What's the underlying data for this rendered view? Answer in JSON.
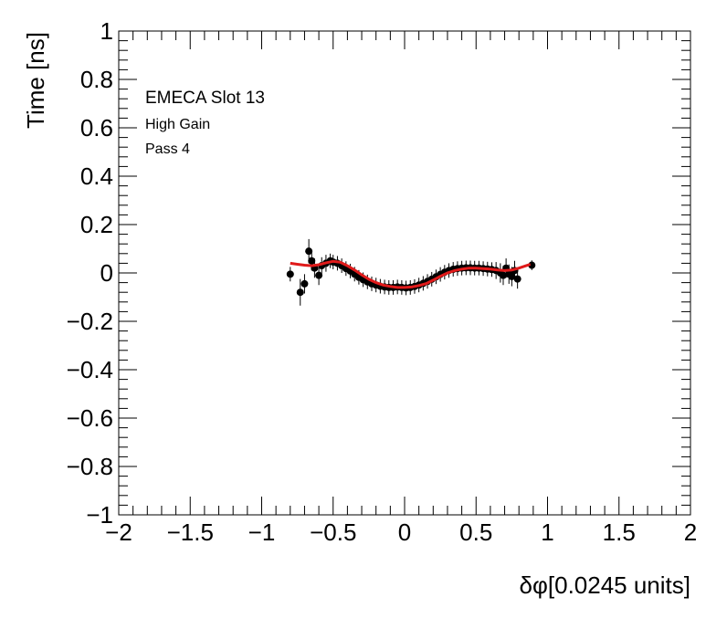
{
  "chart_data": {
    "type": "scatter",
    "title": "",
    "xlabel": "δφ[0.0245 units]",
    "ylabel": "Time [ns]",
    "xlim": [
      -2,
      2
    ],
    "ylim": [
      -1,
      1
    ],
    "x_ticks": [
      -2,
      -1.5,
      -1,
      -0.5,
      0,
      0.5,
      1,
      1.5,
      2
    ],
    "x_tick_labels": [
      "−2",
      "−1.5",
      "−1",
      "−0.5",
      "0",
      "0.5",
      "1",
      "1.5",
      "2"
    ],
    "y_ticks": [
      -1,
      -0.8,
      -0.6,
      -0.4,
      -0.2,
      0,
      0.2,
      0.4,
      0.6,
      0.8,
      1
    ],
    "y_tick_labels": [
      "−1",
      "−0.8",
      "−0.6",
      "−0.4",
      "−0.2",
      "0",
      "0.2",
      "0.4",
      "0.6",
      "0.8",
      "1"
    ],
    "grid": false,
    "annotations": [
      "EMECA Slot 13",
      "High Gain",
      "Pass 4"
    ],
    "series": [
      {
        "kind": "points-with-error-bars",
        "color": "#000000",
        "x": [
          -0.8,
          -0.73,
          -0.7,
          -0.67,
          -0.65,
          -0.63,
          -0.6,
          -0.58,
          -0.55,
          -0.52,
          -0.5,
          -0.47,
          -0.44,
          -0.41,
          -0.38,
          -0.35,
          -0.32,
          -0.29,
          -0.26,
          -0.23,
          -0.2,
          -0.17,
          -0.14,
          -0.11,
          -0.08,
          -0.05,
          -0.02,
          0.01,
          0.04,
          0.07,
          0.1,
          0.13,
          0.16,
          0.19,
          0.22,
          0.25,
          0.28,
          0.31,
          0.34,
          0.37,
          0.4,
          0.43,
          0.46,
          0.49,
          0.52,
          0.55,
          0.58,
          0.61,
          0.64,
          0.67,
          0.69,
          0.71,
          0.73,
          0.75,
          0.77,
          0.79,
          0.89
        ],
        "y": [
          -0.005,
          -0.08,
          -0.045,
          0.09,
          0.05,
          0.02,
          -0.01,
          0.03,
          0.04,
          0.05,
          0.045,
          0.04,
          0.03,
          0.018,
          0.008,
          -0.005,
          -0.018,
          -0.028,
          -0.037,
          -0.045,
          -0.05,
          -0.055,
          -0.058,
          -0.06,
          -0.06,
          -0.058,
          -0.06,
          -0.062,
          -0.06,
          -0.056,
          -0.05,
          -0.043,
          -0.035,
          -0.026,
          -0.016,
          -0.006,
          0.003,
          0.01,
          0.015,
          0.018,
          0.02,
          0.021,
          0.021,
          0.02,
          0.02,
          0.018,
          0.016,
          0.014,
          0.01,
          0.0,
          -0.01,
          0.02,
          -0.005,
          -0.015,
          0.01,
          -0.025,
          0.032
        ],
        "err": [
          0.03,
          0.055,
          0.04,
          0.05,
          0.04,
          0.04,
          0.04,
          0.035,
          0.035,
          0.03,
          0.03,
          0.03,
          0.03,
          0.03,
          0.03,
          0.03,
          0.03,
          0.03,
          0.03,
          0.03,
          0.03,
          0.03,
          0.03,
          0.03,
          0.03,
          0.03,
          0.03,
          0.03,
          0.03,
          0.03,
          0.03,
          0.03,
          0.03,
          0.03,
          0.03,
          0.03,
          0.03,
          0.03,
          0.03,
          0.03,
          0.03,
          0.03,
          0.03,
          0.03,
          0.03,
          0.03,
          0.03,
          0.03,
          0.035,
          0.04,
          0.04,
          0.04,
          0.04,
          0.04,
          0.04,
          0.04,
          0.02
        ]
      },
      {
        "kind": "fit-line",
        "color": "#e01a1a",
        "x": [
          -0.8,
          -0.75,
          -0.7,
          -0.65,
          -0.6,
          -0.55,
          -0.5,
          -0.45,
          -0.4,
          -0.35,
          -0.3,
          -0.25,
          -0.2,
          -0.15,
          -0.1,
          -0.05,
          0.0,
          0.05,
          0.1,
          0.15,
          0.2,
          0.25,
          0.3,
          0.35,
          0.4,
          0.45,
          0.5,
          0.55,
          0.6,
          0.65,
          0.7,
          0.75,
          0.8,
          0.85,
          0.88
        ],
        "y": [
          0.04,
          0.036,
          0.032,
          0.03,
          0.034,
          0.042,
          0.048,
          0.044,
          0.03,
          0.012,
          -0.008,
          -0.026,
          -0.04,
          -0.05,
          -0.056,
          -0.06,
          -0.06,
          -0.058,
          -0.052,
          -0.044,
          -0.03,
          -0.014,
          0.0,
          0.01,
          0.016,
          0.02,
          0.02,
          0.018,
          0.016,
          0.012,
          0.01,
          0.012,
          0.02,
          0.03,
          0.036
        ]
      }
    ]
  }
}
